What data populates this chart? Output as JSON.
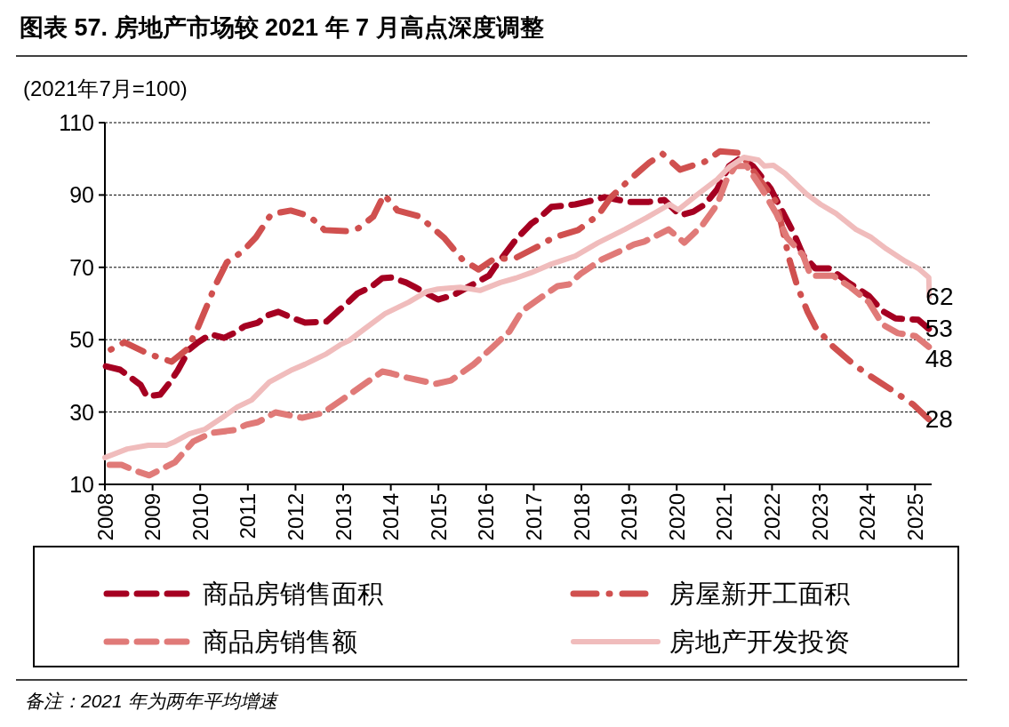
{
  "chart_data": {
    "type": "line",
    "title": "图表 57. 房地产市场较 2021 年 7 月高点深度调整",
    "ylabel": "(2021年7月=100)",
    "xlim": [
      2008,
      2025.35
    ],
    "xticks": [
      2008,
      2009,
      2010,
      2011,
      2012,
      2013,
      2014,
      2015,
      2016,
      2017,
      2018,
      2019,
      2020,
      2021,
      2022,
      2023,
      2024,
      2025
    ],
    "ylim": [
      10,
      110
    ],
    "yticks": [
      10,
      30,
      50,
      70,
      90,
      110
    ],
    "grid": "y",
    "legend": "bottom",
    "series": [
      {
        "name": "商品房销售面积",
        "color": "#a50021",
        "line_style": "dashed",
        "x": [
          2008.0,
          2008.32,
          2008.75,
          2008.88,
          2009.16,
          2009.34,
          2009.53,
          2009.77,
          2009.96,
          2010.22,
          2010.5,
          2010.71,
          2010.93,
          2011.21,
          2011.4,
          2011.64,
          2011.9,
          2012.2,
          2012.65,
          2012.89,
          2013.07,
          2013.3,
          2013.58,
          2013.82,
          2014.01,
          2014.32,
          2014.51,
          2014.99,
          2015.31,
          2015.82,
          2016.06,
          2016.19,
          2016.38,
          2016.62,
          2016.94,
          2017.12,
          2017.37,
          2017.87,
          2018.11,
          2018.49,
          2018.99,
          2019.42,
          2019.74,
          2020.07,
          2020.35,
          2020.59,
          2020.85,
          2021.1,
          2021.34,
          2021.6,
          2021.97,
          2022.22,
          2022.46,
          2022.65,
          2022.91,
          2023.21,
          2023.58,
          2024.03,
          2024.32,
          2024.59,
          2025.07,
          2025.29
        ],
        "value_labels": [
          null,
          null,
          null,
          null,
          null,
          null,
          null,
          null,
          null,
          null,
          null,
          null,
          null,
          null,
          null,
          null,
          null,
          null,
          null,
          null,
          null,
          null,
          null,
          null,
          null,
          null,
          null,
          null,
          null,
          null,
          null,
          null,
          null,
          null,
          null,
          null,
          null,
          null,
          null,
          null,
          null,
          null,
          null,
          null,
          null,
          null,
          null,
          null,
          null,
          null,
          null,
          null,
          null,
          null,
          null,
          null,
          null,
          null,
          null,
          null,
          null,
          "53"
        ],
        "values": [
          42.7,
          41.7,
          37.5,
          34.3,
          34.8,
          37.8,
          41.5,
          47.3,
          49.3,
          51.5,
          50.5,
          51.8,
          53.7,
          54.7,
          56.7,
          57.7,
          56.2,
          54.7,
          55.0,
          57.9,
          59.9,
          62.8,
          64.5,
          67.0,
          67.2,
          65.8,
          64.5,
          61.1,
          62.3,
          66.0,
          67.7,
          70.2,
          73.4,
          77.6,
          82.0,
          83.7,
          86.7,
          87.4,
          88.1,
          89.4,
          88.1,
          88.1,
          88.6,
          84.4,
          85.4,
          87.4,
          91.6,
          98.0,
          100.2,
          98.0,
          91.8,
          85.4,
          79.3,
          73.4,
          69.7,
          69.7,
          66.0,
          62.1,
          57.9,
          55.9,
          55.5,
          53
        ]
      },
      {
        "name": "房屋新开工面积",
        "color": "#d0504f",
        "line_style": "dashdot",
        "x": [
          2008.0,
          2008.41,
          2008.91,
          2009.4,
          2009.72,
          2009.94,
          2010.15,
          2010.31,
          2010.56,
          2010.89,
          2011.17,
          2011.49,
          2011.9,
          2012.29,
          2012.61,
          2013.07,
          2013.32,
          2013.63,
          2013.86,
          2014.14,
          2014.57,
          2014.81,
          2015.13,
          2015.5,
          2015.84,
          2016.15,
          2016.62,
          2017.09,
          2017.42,
          2017.93,
          2018.35,
          2018.62,
          2018.99,
          2019.42,
          2019.7,
          2020.07,
          2020.59,
          2020.91,
          2021.34,
          2021.71,
          2022.09,
          2022.27,
          2022.37,
          2022.53,
          2022.74,
          2022.91,
          2023.28,
          2023.71,
          2024.03,
          2024.49,
          2024.96,
          2025.29
        ],
        "value_labels": [
          null,
          null,
          null,
          null,
          null,
          null,
          null,
          null,
          null,
          null,
          null,
          null,
          null,
          null,
          null,
          null,
          null,
          null,
          null,
          null,
          null,
          null,
          null,
          null,
          null,
          null,
          null,
          null,
          null,
          null,
          null,
          null,
          null,
          null,
          null,
          null,
          null,
          null,
          null,
          null,
          null,
          null,
          null,
          null,
          null,
          null,
          null,
          null,
          null,
          null,
          null,
          "28"
        ],
        "values": [
          46.4,
          49.3,
          46.1,
          43.9,
          47.3,
          53.0,
          59.6,
          64.8,
          71.4,
          74.4,
          78.3,
          84.7,
          85.7,
          84.2,
          80.3,
          80.0,
          80.8,
          84.0,
          90.1,
          85.7,
          84.2,
          81.7,
          78.0,
          72.2,
          69.4,
          72.2,
          72.6,
          75.8,
          78.3,
          80.3,
          84.4,
          89.4,
          94.0,
          98.9,
          101.4,
          97.0,
          99.2,
          102.1,
          101.6,
          94.8,
          88.1,
          77.6,
          71.9,
          64.8,
          57.9,
          53.5,
          48.1,
          43.2,
          40.2,
          36.3,
          32.1,
          28
        ]
      },
      {
        "name": "商品房销售额",
        "color": "#e07a78",
        "line_style": "dashed",
        "x": [
          2008.0,
          2008.35,
          2008.65,
          2008.93,
          2009.47,
          2009.85,
          2010.22,
          2010.71,
          2010.97,
          2011.21,
          2011.58,
          2012.14,
          2012.57,
          2013.02,
          2013.45,
          2013.82,
          2014.01,
          2014.34,
          2014.94,
          2015.26,
          2015.74,
          2016.15,
          2016.49,
          2016.75,
          2017.22,
          2017.5,
          2017.74,
          2017.98,
          2018.43,
          2018.8,
          2019.1,
          2019.32,
          2019.83,
          2020.16,
          2020.54,
          2020.85,
          2021.04,
          2021.23,
          2021.47,
          2021.79,
          2022.09,
          2022.31,
          2022.65,
          2022.81,
          2023.28,
          2023.65,
          2024.03,
          2024.32,
          2024.64,
          2025.01,
          2025.29
        ],
        "value_labels": [
          null,
          null,
          null,
          null,
          null,
          null,
          null,
          null,
          null,
          null,
          null,
          null,
          null,
          null,
          null,
          null,
          null,
          null,
          null,
          null,
          null,
          null,
          null,
          null,
          null,
          null,
          null,
          null,
          null,
          null,
          null,
          null,
          null,
          null,
          null,
          null,
          null,
          null,
          null,
          null,
          null,
          null,
          null,
          null,
          null,
          null,
          null,
          null,
          null,
          null,
          "48"
        ],
        "values": [
          15.4,
          15.4,
          13.7,
          12.5,
          16.1,
          21.8,
          24.2,
          25.0,
          26.5,
          27.2,
          29.9,
          28.4,
          29.7,
          33.8,
          37.8,
          41.2,
          40.7,
          39.5,
          37.8,
          38.7,
          43.2,
          48.1,
          52.3,
          57.9,
          62.3,
          64.8,
          65.3,
          68.2,
          72.2,
          74.4,
          76.3,
          77.1,
          80.5,
          76.8,
          81.7,
          87.4,
          94.0,
          98.0,
          98.0,
          91.6,
          84.9,
          78.3,
          73.4,
          67.7,
          67.7,
          64.5,
          60.4,
          54.2,
          51.8,
          51.0,
          48
        ]
      },
      {
        "name": "房地产开发投资",
        "color": "#f0bcbc",
        "line_style": "solid",
        "x": [
          2008.0,
          2008.47,
          2008.91,
          2009.29,
          2009.47,
          2009.77,
          2010.09,
          2010.46,
          2010.78,
          2011.08,
          2011.45,
          2011.9,
          2012.2,
          2012.65,
          2012.94,
          2013.13,
          2013.45,
          2013.88,
          2014.38,
          2014.75,
          2014.99,
          2015.46,
          2015.87,
          2016.3,
          2016.62,
          2016.94,
          2017.37,
          2017.87,
          2018.35,
          2018.91,
          2019.36,
          2019.85,
          2020.03,
          2020.41,
          2020.85,
          2021.1,
          2021.41,
          2021.71,
          2021.84,
          2022.03,
          2022.27,
          2022.72,
          2023.02,
          2023.34,
          2023.76,
          2024.08,
          2024.4,
          2024.77,
          2025.07,
          2025.29,
          2025.3
        ],
        "value_labels": [
          null,
          null,
          null,
          null,
          null,
          null,
          null,
          null,
          null,
          null,
          null,
          null,
          null,
          null,
          null,
          null,
          null,
          null,
          null,
          null,
          null,
          null,
          null,
          null,
          null,
          null,
          null,
          null,
          null,
          null,
          null,
          null,
          null,
          null,
          null,
          null,
          null,
          null,
          null,
          null,
          null,
          null,
          null,
          null,
          null,
          null,
          null,
          null,
          null,
          null,
          "62"
        ],
        "values": [
          17.4,
          19.8,
          20.8,
          20.8,
          21.8,
          24.0,
          25.2,
          28.4,
          31.4,
          33.3,
          38.3,
          41.5,
          43.2,
          46.1,
          48.6,
          49.8,
          53.0,
          57.2,
          60.4,
          63.3,
          64.0,
          64.5,
          63.6,
          65.8,
          67.0,
          68.5,
          70.9,
          73.1,
          76.8,
          80.5,
          83.7,
          87.4,
          85.9,
          89.9,
          94.3,
          97.7,
          100.4,
          99.7,
          98.0,
          98.2,
          96.0,
          90.3,
          87.4,
          84.9,
          80.5,
          78.3,
          75.1,
          71.9,
          69.7,
          67.2,
          62
        ]
      }
    ],
    "annotations": [
      "备注：2021 年为两年平均增速"
    ]
  }
}
